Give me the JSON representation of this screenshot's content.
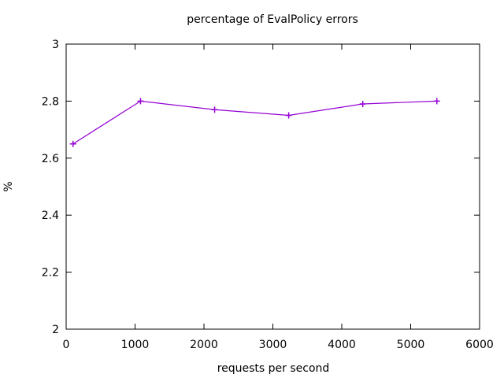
{
  "window": {
    "background": "#ffffff"
  },
  "chart_data": {
    "type": "line",
    "title": "percentage of EvalPolicy errors",
    "xlabel": "requests per second",
    "ylabel": "%",
    "xlim": [
      0,
      6000
    ],
    "ylim": [
      2,
      3
    ],
    "xticks": [
      0,
      1000,
      2000,
      3000,
      4000,
      5000,
      6000
    ],
    "xtick_labels": [
      "0",
      "1000",
      "2000",
      "3000",
      "4000",
      "5000",
      "6000"
    ],
    "yticks": [
      2,
      2.2,
      2.4,
      2.6,
      2.8,
      3
    ],
    "ytick_labels": [
      "2",
      "2.2",
      "2.4",
      "2.6",
      "2.8",
      "3"
    ],
    "grid": false,
    "legend": "none",
    "axis_color": "#000000",
    "text_color": "#000000",
    "series": [
      {
        "name": "EvalPolicy error percentage",
        "color": "#9400d3",
        "marker": "plus",
        "points": [
          [
            100,
            2.65
          ],
          [
            1080,
            2.8
          ],
          [
            2155,
            2.77
          ],
          [
            3230,
            2.75
          ],
          [
            4305,
            2.79
          ],
          [
            5380,
            2.8
          ]
        ]
      }
    ]
  }
}
